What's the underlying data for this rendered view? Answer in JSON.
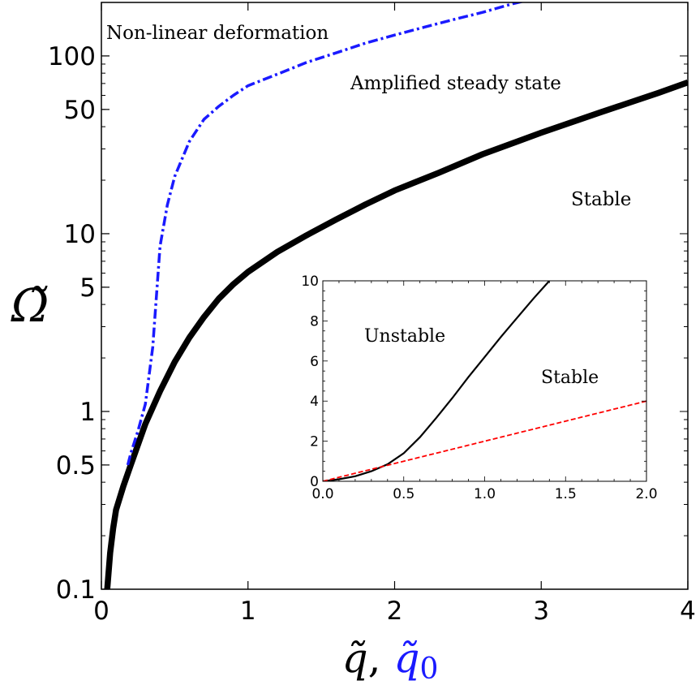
{
  "chart_data": [
    {
      "type": "line",
      "title": "",
      "xlabel": {
        "primary": "q̃",
        "separator": ", ",
        "secondary": "q̃",
        "secondary_subscript": "0"
      },
      "ylabel": "Ω̃",
      "xlim": [
        0,
        4
      ],
      "ylim": [
        0.1,
        200
      ],
      "yscale": "log",
      "grid": false,
      "x_ticks": [
        "0",
        "1",
        "2",
        "3",
        "4"
      ],
      "y_ticks": [
        "0.1",
        "0.5",
        "1",
        "5",
        "10",
        "50",
        "100"
      ],
      "y_tick_values": [
        0.1,
        0.5,
        1,
        5,
        10,
        50,
        100
      ],
      "colors": {
        "secondary_label": "#1a1aff"
      },
      "series": [
        {
          "style": "solid-thick",
          "color": "#000000",
          "x": [
            0.04,
            0.06,
            0.08,
            0.1,
            0.15,
            0.2,
            0.3,
            0.4,
            0.5,
            0.6,
            0.7,
            0.8,
            0.9,
            1.0,
            1.2,
            1.4,
            1.6,
            1.8,
            2.0,
            2.3,
            2.6,
            3.0,
            3.4,
            3.8,
            4.0
          ],
          "y": [
            0.1,
            0.16,
            0.22,
            0.28,
            0.38,
            0.5,
            0.85,
            1.3,
            1.9,
            2.6,
            3.4,
            4.3,
            5.2,
            6.1,
            7.9,
            9.8,
            12.0,
            14.6,
            17.5,
            22,
            28,
            37,
            48,
            62,
            71
          ]
        },
        {
          "style": "dash-dot",
          "color": "#1a1aff",
          "x": [
            0.18,
            0.2,
            0.25,
            0.3,
            0.35,
            0.4,
            0.45,
            0.5,
            0.6,
            0.7,
            0.8,
            0.9,
            1.0,
            1.2,
            1.4,
            1.6,
            1.8,
            2.0,
            2.2,
            2.4,
            2.6,
            2.8,
            3.0
          ],
          "y": [
            0.5,
            0.58,
            0.78,
            1.1,
            2.3,
            8.5,
            14.5,
            21,
            33,
            44,
            52,
            60,
            68,
            79,
            92,
            104,
            118,
            131,
            145,
            160,
            176,
            196,
            215
          ]
        }
      ],
      "annotations": [
        "Non-linear deformation",
        "Amplified steady state",
        "Stable"
      ]
    },
    {
      "type": "line",
      "title": "",
      "xlabel": "",
      "ylabel": "",
      "xlim": [
        0,
        2
      ],
      "ylim": [
        0,
        10
      ],
      "grid": false,
      "x_ticks": [
        "0.0",
        "0.5",
        "1.0",
        "1.5",
        "2.0"
      ],
      "y_ticks": [
        "0",
        "2",
        "4",
        "6",
        "8",
        "10"
      ],
      "series": [
        {
          "style": "solid",
          "color": "#000000",
          "x": [
            0.0,
            0.1,
            0.2,
            0.3,
            0.4,
            0.5,
            0.6,
            0.7,
            0.8,
            0.9,
            1.0,
            1.1,
            1.2,
            1.3,
            1.4
          ],
          "y": [
            0.0,
            0.1,
            0.25,
            0.5,
            0.85,
            1.4,
            2.2,
            3.15,
            4.15,
            5.2,
            6.2,
            7.2,
            8.15,
            9.1,
            10.0
          ]
        },
        {
          "style": "dashed",
          "color": "#ff0000",
          "x": [
            0.0,
            2.0
          ],
          "y": [
            0.0,
            4.0
          ]
        }
      ],
      "annotations": [
        "Unstable",
        "Stable"
      ]
    }
  ]
}
